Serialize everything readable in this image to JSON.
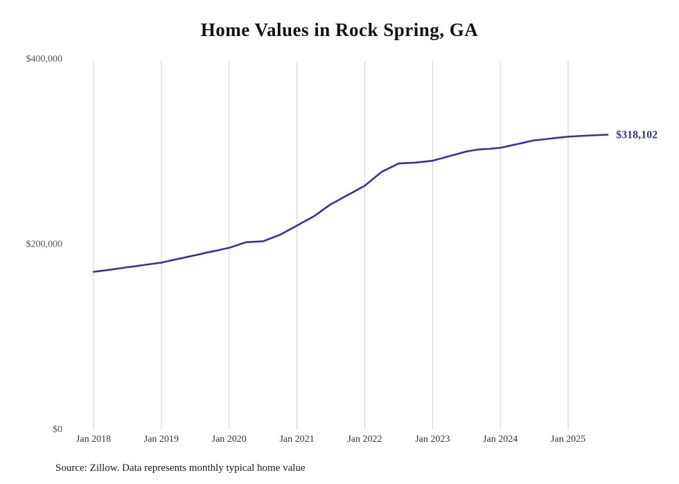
{
  "title": "Home Values in Rock Spring, GA",
  "source_note": "Source: Zillow. Data represents monthly typical home value",
  "end_label": "$318,102",
  "colors": {
    "line": "#33339b",
    "grid": "#cccccc",
    "y_axis_text": "#555555",
    "x_axis_text": "#333333",
    "title_text": "#111111"
  },
  "chart_data": {
    "type": "line",
    "title": "Home Values in Rock Spring, GA",
    "xlabel": "",
    "ylabel": "",
    "ylim": [
      0,
      400000
    ],
    "grid": "vertical-only",
    "legend": "none",
    "y_ticks": [
      0,
      200000,
      400000
    ],
    "y_tick_labels": [
      "$0",
      "$200,000",
      "$400,000"
    ],
    "x_tick_labels": [
      "Jan 2018",
      "Jan 2019",
      "Jan 2020",
      "Jan 2021",
      "Jan 2022",
      "Jan 2023",
      "Jan 2024",
      "Jan 2025"
    ],
    "series": [
      {
        "name": "Typical home value",
        "start_date": "2018-01",
        "frequency": "monthly",
        "end_value_label": "$318,102",
        "values": [
          170000,
          170800,
          171600,
          172400,
          173200,
          174100,
          175000,
          175800,
          176600,
          177500,
          178300,
          179200,
          180000,
          181300,
          182700,
          184000,
          185300,
          186700,
          188000,
          189300,
          190700,
          192000,
          193300,
          194700,
          196000,
          198000,
          200000,
          202000,
          202400,
          202700,
          203000,
          205300,
          207700,
          210000,
          213300,
          216700,
          220000,
          223300,
          226700,
          230000,
          234300,
          238700,
          243000,
          246300,
          249700,
          253000,
          256300,
          259700,
          263000,
          268000,
          273000,
          278000,
          281000,
          284000,
          287000,
          287300,
          287700,
          288000,
          288700,
          289300,
          290000,
          291700,
          293300,
          295000,
          296700,
          298300,
          300000,
          301000,
          302000,
          302500,
          302800,
          303400,
          304000,
          305300,
          306700,
          308000,
          309300,
          310700,
          312000,
          312700,
          313300,
          314000,
          314700,
          315300,
          316000,
          316300,
          316700,
          317000,
          317300,
          317600,
          317900,
          318102
        ]
      }
    ]
  }
}
